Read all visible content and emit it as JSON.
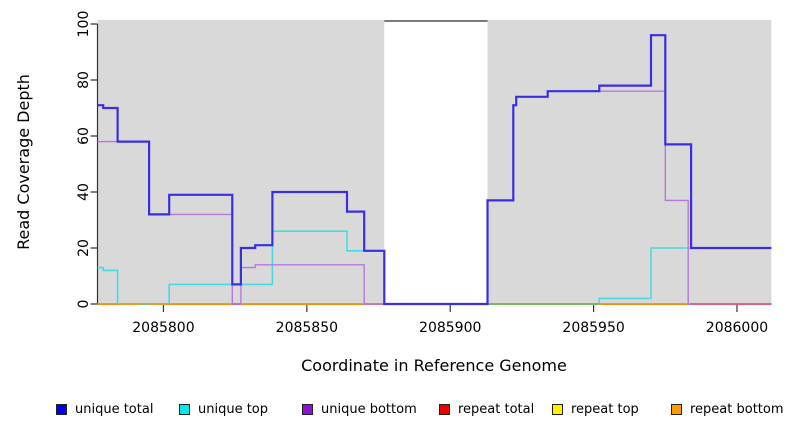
{
  "chart_data": {
    "type": "line",
    "title": "",
    "xlabel": "Coordinate in Reference Genome",
    "ylabel": "Read Coverage Depth",
    "x_ticks": [
      2085800,
      2085850,
      2085900,
      2085950,
      2086000
    ],
    "y_ticks": [
      0,
      20,
      40,
      60,
      80,
      100
    ],
    "x_range": [
      2085777,
      2086012
    ],
    "y_range": [
      0,
      100
    ],
    "grid": "off",
    "legend_position": "bottom",
    "plot_background": "#d9d9d9",
    "gap_band": {
      "x_start": 2085877,
      "x_end": 2085913,
      "fill": "#ffffff",
      "top_border": "#7a7a7a"
    },
    "series": [
      {
        "name": "unique total",
        "color": "#3a2fe0",
        "line_width": 2.2,
        "points": [
          [
            2085777,
            71
          ],
          [
            2085779,
            70
          ],
          [
            2085784,
            58
          ],
          [
            2085795,
            32
          ],
          [
            2085802,
            39
          ],
          [
            2085824,
            7
          ],
          [
            2085827,
            20
          ],
          [
            2085832,
            21
          ],
          [
            2085838,
            40
          ],
          [
            2085864,
            33
          ],
          [
            2085870,
            19
          ],
          [
            2085877,
            0
          ],
          [
            2085913,
            37
          ],
          [
            2085922,
            71
          ],
          [
            2085923,
            74
          ],
          [
            2085934,
            76
          ],
          [
            2085952,
            78
          ],
          [
            2085970,
            96
          ],
          [
            2085975,
            57
          ],
          [
            2085984,
            20
          ]
        ]
      },
      {
        "name": "unique top",
        "color": "#49d9e3",
        "line_width": 1.6,
        "points": [
          [
            2085777,
            13
          ],
          [
            2085779,
            12
          ],
          [
            2085784,
            0
          ],
          [
            2085802,
            7
          ],
          [
            2085838,
            26
          ],
          [
            2085864,
            19
          ],
          [
            2085877,
            0
          ],
          [
            2085952,
            2
          ],
          [
            2085970,
            20
          ]
        ]
      },
      {
        "name": "unique bottom",
        "color": "#b678e0",
        "line_width": 1.4,
        "points": [
          [
            2085777,
            58
          ],
          [
            2085795,
            32
          ],
          [
            2085824,
            0
          ],
          [
            2085827,
            13
          ],
          [
            2085832,
            14
          ],
          [
            2085870,
            0
          ],
          [
            2085913,
            37
          ],
          [
            2085922,
            71
          ],
          [
            2085923,
            74
          ],
          [
            2085934,
            76
          ],
          [
            2085975,
            37
          ],
          [
            2085983,
            0
          ]
        ]
      },
      {
        "name": "repeat total",
        "color": "#e0403f",
        "line_width": 1.4,
        "points": [
          [
            2085777,
            0
          ]
        ]
      },
      {
        "name": "repeat top",
        "color": "#ffe800",
        "line_width": 1.4,
        "points": [
          [
            2085777,
            0
          ]
        ]
      },
      {
        "name": "repeat bottom",
        "color": "#ff9e00",
        "line_width": 1.6,
        "points": [
          [
            2085777,
            0
          ]
        ]
      }
    ],
    "baseline_overpaint_segments": [
      {
        "from": 2085792,
        "to": 2085795,
        "color": "#7cc87c"
      },
      {
        "from": 2085824,
        "to": 2085827,
        "color": "#c468c4"
      },
      {
        "from": 2085913,
        "to": 2085952,
        "color": "#5fbd72"
      },
      {
        "from": 2085984,
        "to": 2086012,
        "color": "#e85580"
      }
    ],
    "legend": [
      {
        "label": "unique total",
        "swatch": "#0000ee"
      },
      {
        "label": "unique top",
        "swatch": "#00e8f0"
      },
      {
        "label": "unique bottom",
        "swatch": "#9410d3"
      },
      {
        "label": "repeat total",
        "swatch": "#ee0000"
      },
      {
        "label": "repeat top",
        "swatch": "#fff000"
      },
      {
        "label": "repeat bottom",
        "swatch": "#ff9d00"
      }
    ]
  }
}
